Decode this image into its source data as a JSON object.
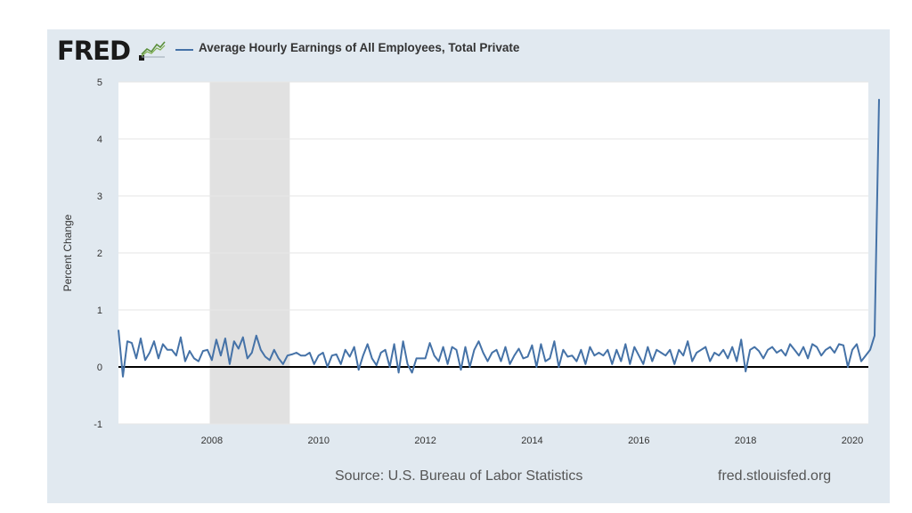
{
  "brand": {
    "logo_text": "FRED",
    "graph_icon": "chart-line-icon"
  },
  "colors": {
    "panel_bg": "#e1e9f0",
    "plot_bg": "#ffffff",
    "series": "#4572a7",
    "recession": "#e1e1e1",
    "zero_line": "#000000",
    "grid": "#e6e6e6"
  },
  "source_text": "Source: U.S. Bureau of Labor Statistics",
  "site_url": "fred.stlouisfed.org",
  "chart_data": {
    "type": "line",
    "title": "",
    "ylabel": "Percent Change",
    "xlabel": "",
    "ylim": [
      -1,
      5
    ],
    "yticks": [
      -1,
      0,
      1,
      2,
      3,
      4,
      5
    ],
    "xlim": [
      2006.25,
      2020.3
    ],
    "xticks": [
      2008,
      2010,
      2012,
      2014,
      2016,
      2018,
      2020
    ],
    "grid": true,
    "legend_position": "top-left",
    "recession_shading": [
      {
        "start": 2007.96,
        "end": 2009.46
      }
    ],
    "series": [
      {
        "name": "Average Hourly Earnings of All Employees, Total Private",
        "x_start": "2006-04",
        "frequency": "monthly",
        "values": [
          0.65,
          -0.17,
          0.45,
          0.42,
          0.15,
          0.5,
          0.12,
          0.25,
          0.45,
          0.15,
          0.4,
          0.3,
          0.3,
          0.2,
          0.52,
          0.1,
          0.28,
          0.15,
          0.1,
          0.28,
          0.3,
          0.12,
          0.48,
          0.2,
          0.5,
          0.05,
          0.45,
          0.32,
          0.52,
          0.15,
          0.25,
          0.55,
          0.3,
          0.18,
          0.12,
          0.3,
          0.15,
          0.05,
          0.2,
          0.22,
          0.25,
          0.2,
          0.2,
          0.25,
          0.05,
          0.2,
          0.25,
          0.0,
          0.2,
          0.22,
          0.05,
          0.3,
          0.18,
          0.35,
          -0.05,
          0.2,
          0.4,
          0.15,
          0.03,
          0.25,
          0.3,
          0.0,
          0.4,
          -0.1,
          0.45,
          0.05,
          -0.1,
          0.15,
          0.15,
          0.15,
          0.42,
          0.2,
          0.1,
          0.35,
          0.05,
          0.35,
          0.3,
          -0.05,
          0.35,
          0.0,
          0.3,
          0.45,
          0.25,
          0.1,
          0.25,
          0.3,
          0.1,
          0.35,
          0.05,
          0.2,
          0.32,
          0.15,
          0.18,
          0.38,
          0.0,
          0.4,
          0.1,
          0.15,
          0.45,
          0.0,
          0.3,
          0.18,
          0.2,
          0.1,
          0.3,
          0.05,
          0.35,
          0.2,
          0.25,
          0.2,
          0.3,
          0.05,
          0.3,
          0.1,
          0.4,
          0.05,
          0.35,
          0.2,
          0.05,
          0.35,
          0.1,
          0.3,
          0.25,
          0.2,
          0.3,
          0.05,
          0.3,
          0.2,
          0.45,
          0.1,
          0.25,
          0.3,
          0.35,
          0.1,
          0.25,
          0.2,
          0.3,
          0.15,
          0.35,
          0.1,
          0.48,
          -0.08,
          0.3,
          0.35,
          0.28,
          0.15,
          0.3,
          0.35,
          0.25,
          0.3,
          0.2,
          0.4,
          0.3,
          0.2,
          0.35,
          0.15,
          0.4,
          0.35,
          0.2,
          0.3,
          0.35,
          0.25,
          0.4,
          0.38,
          0.0,
          0.3,
          0.4,
          0.1,
          0.2,
          0.3,
          0.55,
          4.7
        ]
      }
    ]
  }
}
